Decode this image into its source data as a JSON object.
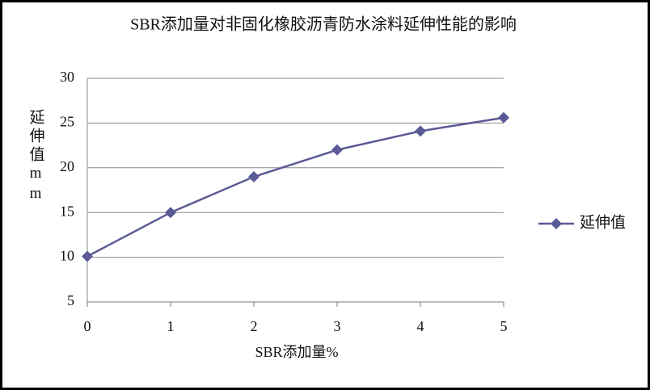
{
  "chart_data": {
    "type": "line",
    "title": "SBR添加量对非固化橡胶沥青防水涂料延伸性能的影响",
    "x_label": "SBR添加量%",
    "y_label": "延伸值mm",
    "x": [
      0,
      1,
      2,
      3,
      4,
      5
    ],
    "series": [
      {
        "name": "延伸值",
        "color": "#5a5a96",
        "values": [
          10.1,
          15,
          19,
          22,
          24.1,
          25.6
        ]
      }
    ],
    "xlim": [
      0,
      5
    ],
    "xticks": [
      0,
      1,
      2,
      3,
      4,
      5
    ],
    "ylim": [
      5,
      30
    ],
    "yticks": [
      5,
      10,
      15,
      20,
      25,
      30
    ],
    "grid": true,
    "legend": "right"
  }
}
